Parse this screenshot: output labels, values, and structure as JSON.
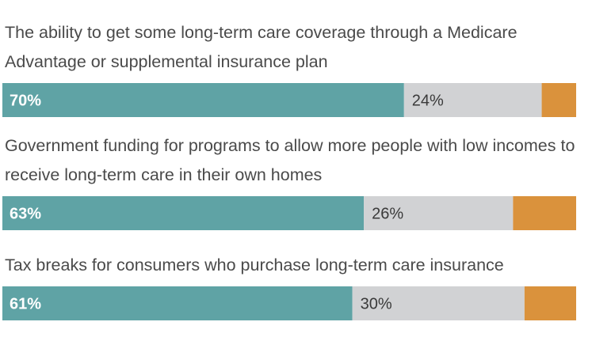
{
  "chart_data": {
    "type": "bar",
    "orientation": "horizontal",
    "stacked": true,
    "categories": [
      "The ability to get some long-term care coverage through a Medicare Advantage or supplemental insurance plan",
      "Government funding for programs to allow more people with low incomes to receive long-term care in their own homes",
      "Tax breaks for consumers who purchase long-term care insurance"
    ],
    "category_lines": [
      [
        "The ability to get some long-term care coverage through a Medicare",
        "Advantage or supplemental insurance plan"
      ],
      [
        "Government funding for programs to allow more people with low incomes to",
        "receive long-term care in their own homes"
      ],
      [
        "Tax breaks for consumers who purchase long-term care insurance"
      ]
    ],
    "series": [
      {
        "values": [
          70,
          63,
          61
        ],
        "labels": [
          "70%",
          "63%",
          "61%"
        ],
        "color": "#5fa3a5"
      },
      {
        "values": [
          24,
          26,
          30
        ],
        "labels": [
          "24%",
          "26%",
          "30%"
        ],
        "color": "#d1d2d4"
      },
      {
        "values": [
          5,
          10,
          8
        ],
        "color": "#da923c"
      }
    ],
    "xlim": [
      0,
      100
    ],
    "grid": false,
    "legend": "none"
  }
}
